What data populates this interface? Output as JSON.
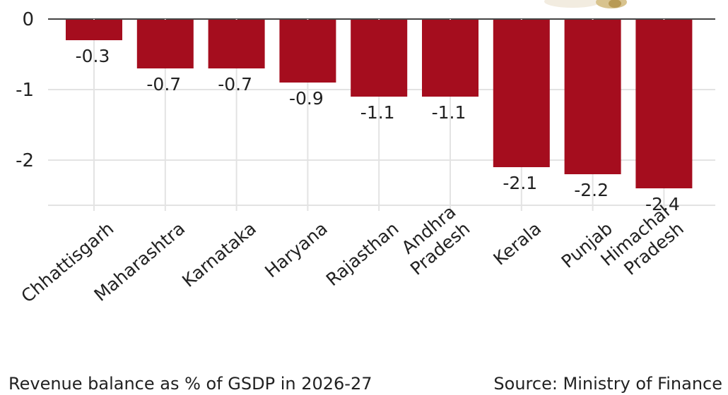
{
  "chart_data": {
    "type": "bar",
    "categories": [
      "Chhattisgarh",
      "Maharashtra",
      "Karnataka",
      "Haryana",
      "Rajasthan",
      "Andhra Pradesh",
      "Kerala",
      "Punjab",
      "Himachal Pradesh"
    ],
    "category_lines": [
      [
        "Chhattisgarh"
      ],
      [
        "Maharashtra"
      ],
      [
        "Karnataka"
      ],
      [
        "Haryana"
      ],
      [
        "Rajasthan"
      ],
      [
        "Andhra",
        "Pradesh"
      ],
      [
        "Kerala"
      ],
      [
        "Punjab"
      ],
      [
        "Himachal",
        "Pradesh"
      ]
    ],
    "values": [
      -0.3,
      -0.7,
      -0.7,
      -0.9,
      -1.1,
      -1.1,
      -2.1,
      -2.2,
      -2.4
    ],
    "value_labels": [
      "-0.3",
      "-0.7",
      "-0.7",
      "-0.9",
      "-1.1",
      "-1.1",
      "-2.1",
      "-2.2",
      "-2.4"
    ],
    "yticks": [
      0,
      -1,
      -2
    ],
    "ytick_labels": [
      "0",
      "-1",
      "-2"
    ],
    "ylim": [
      -2.65,
      0
    ],
    "grid": true,
    "bar_color": "#a50d1e",
    "xlabel": "",
    "ylabel": ""
  },
  "footer": {
    "caption": "Revenue balance as % of GSDP in 2026-27",
    "source": "Source: Ministry of Finance"
  }
}
